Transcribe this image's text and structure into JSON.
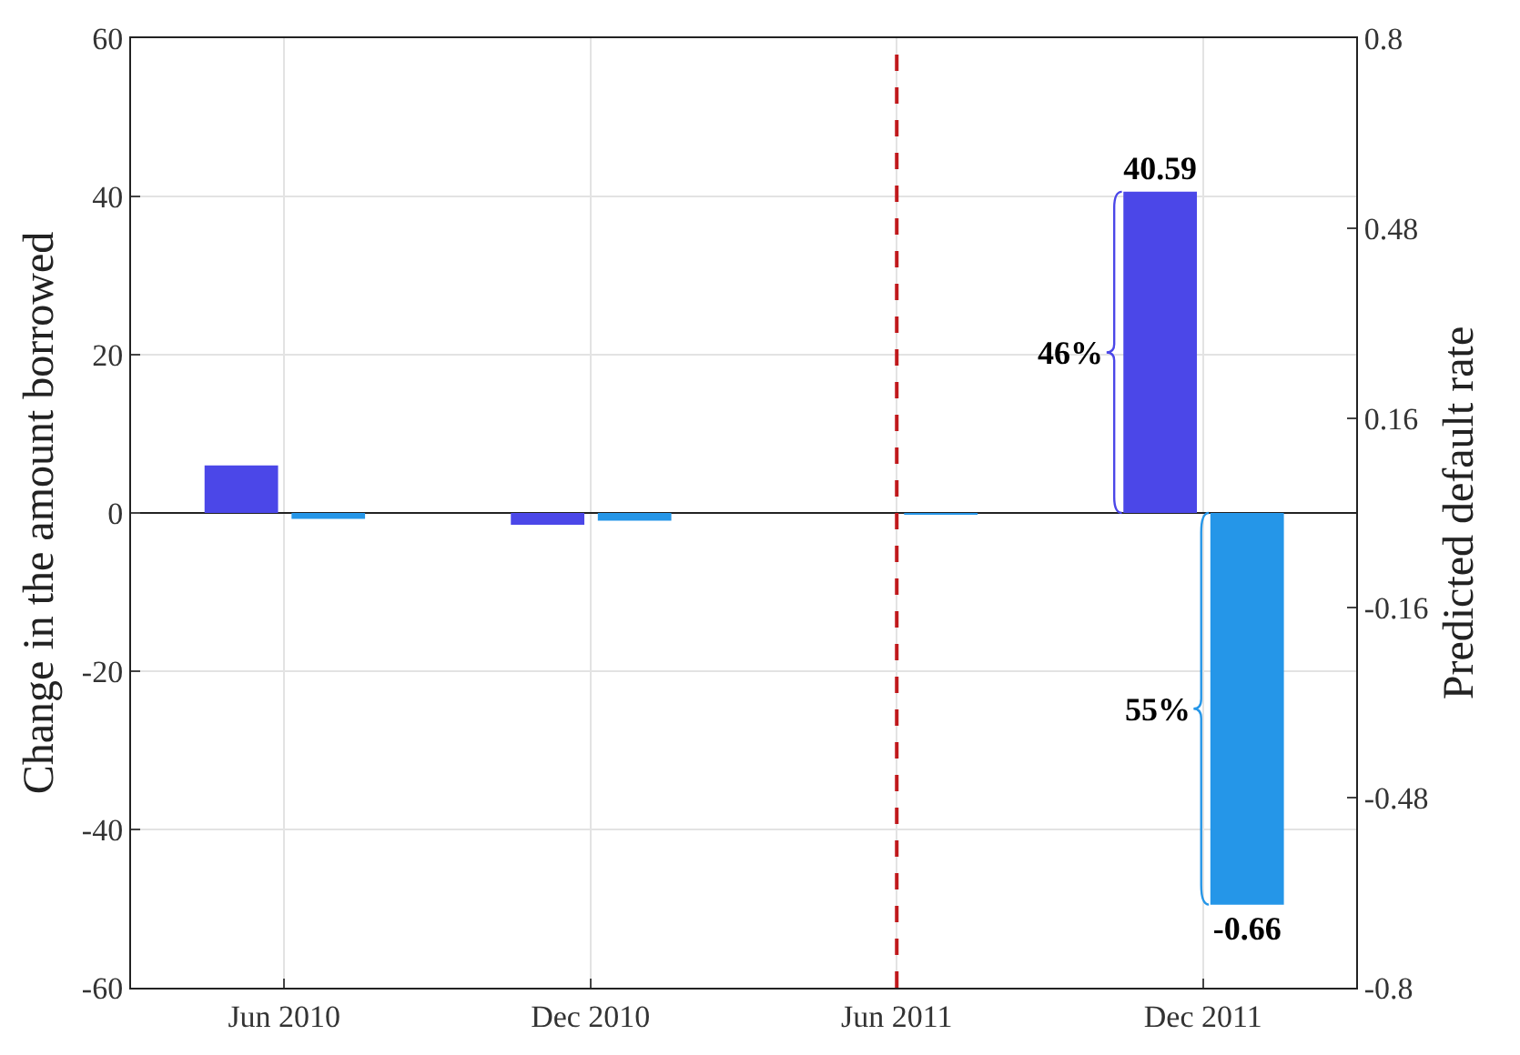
{
  "chart_data": {
    "type": "bar",
    "categories": [
      "Jun 2010",
      "Dec 2010",
      "Jun 2011",
      "Dec 2011"
    ],
    "ylabel": "Change in the amount borrowed",
    "y2label": "Predicted default rate",
    "series": [
      {
        "color": "#4b47e8",
        "values": [
          6,
          -1.5,
          0,
          40.59
        ],
        "value_labels": [
          null,
          null,
          null,
          "40.59"
        ]
      },
      {
        "color": "#2596e8",
        "axis": "y2",
        "values": [
          -0.01,
          -0.013,
          -0.002,
          -0.66
        ],
        "value_labels": [
          null,
          null,
          null,
          "-0.66"
        ]
      }
    ],
    "ylim": [
      -60,
      60
    ],
    "yticks": [
      -60,
      -40,
      -20,
      0,
      20,
      40,
      60
    ],
    "y2lim": [
      -0.8,
      0.8
    ],
    "y2ticks": [
      -0.8,
      -0.48,
      -0.16,
      0.16,
      0.48,
      0.8
    ],
    "ref_lines": [
      {
        "axis": "x",
        "value": "Jun 2011",
        "color": "#c0191c",
        "line_style": "dashed"
      }
    ],
    "annotations": [
      "46%",
      "55%"
    ],
    "grid": true
  }
}
